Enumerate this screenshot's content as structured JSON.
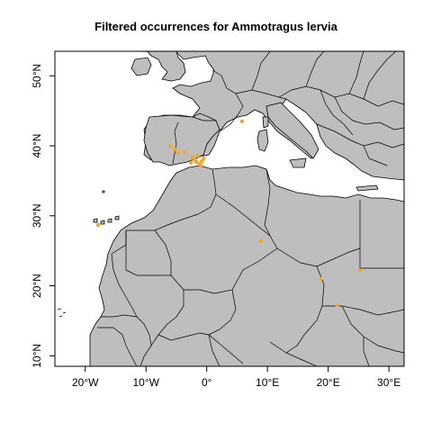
{
  "title": "Filtered occurrences for Ammotragus lervia",
  "colors": {
    "land": "#bebebe",
    "border": "#000000",
    "water": "#ffffff",
    "point": "#f5a623"
  },
  "axes": {
    "lon_range": [
      -25,
      32.5
    ],
    "lat_range": [
      8.5,
      53.5
    ],
    "x_ticks": [
      {
        "value": -20,
        "label": "20°W"
      },
      {
        "value": -10,
        "label": "10°W"
      },
      {
        "value": 0,
        "label": "0°"
      },
      {
        "value": 10,
        "label": "10°E"
      },
      {
        "value": 20,
        "label": "20°E"
      },
      {
        "value": 30,
        "label": "30°E"
      }
    ],
    "y_ticks": [
      {
        "value": 10,
        "label": "10°N"
      },
      {
        "value": 20,
        "label": "20°N"
      },
      {
        "value": 30,
        "label": "30°N"
      },
      {
        "value": 40,
        "label": "40°N"
      },
      {
        "value": 50,
        "label": "50°N"
      }
    ]
  },
  "occurrences": [
    {
      "lon": -6.0,
      "lat": 40.0
    },
    {
      "lon": -5.3,
      "lat": 39.5
    },
    {
      "lon": -4.7,
      "lat": 39.0
    },
    {
      "lon": -3.6,
      "lat": 39.1
    },
    {
      "lon": -2.3,
      "lat": 38.4
    },
    {
      "lon": -2.0,
      "lat": 38.0
    },
    {
      "lon": -1.7,
      "lat": 37.7
    },
    {
      "lon": -1.2,
      "lat": 37.4
    },
    {
      "lon": -0.8,
      "lat": 37.8
    },
    {
      "lon": -1.5,
      "lat": 38.6
    },
    {
      "lon": -0.5,
      "lat": 38.2
    },
    {
      "lon": -1.0,
      "lat": 37.2
    },
    {
      "lon": -2.6,
      "lat": 37.6
    },
    {
      "lon": 5.8,
      "lat": 43.5
    },
    {
      "lon": -17.9,
      "lat": 28.7
    },
    {
      "lon": 8.9,
      "lat": 26.4
    },
    {
      "lon": 18.8,
      "lat": 21.0
    },
    {
      "lon": 21.5,
      "lat": 17.2
    },
    {
      "lon": 25.3,
      "lat": 22.2
    }
  ]
}
